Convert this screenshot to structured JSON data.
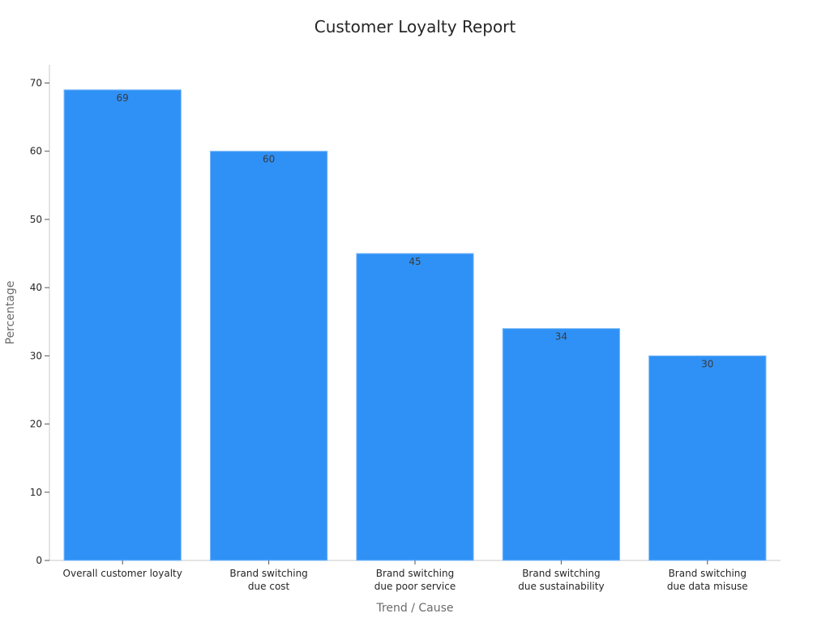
{
  "chart_data": {
    "type": "bar",
    "title": "Customer Loyalty Report",
    "xlabel": "Trend / Cause",
    "ylabel": "Percentage",
    "categories": [
      [
        "Overall customer loyalty"
      ],
      [
        "Brand switching",
        "due cost"
      ],
      [
        "Brand switching",
        "due poor service"
      ],
      [
        "Brand switching",
        "due sustainability"
      ],
      [
        "Brand switching",
        "due data misuse"
      ]
    ],
    "values": [
      69,
      60,
      45,
      34,
      30
    ],
    "ylim": [
      0,
      70
    ],
    "yticks": [
      0,
      10,
      20,
      30,
      40,
      50,
      60,
      70
    ],
    "grid": false,
    "legend": "none",
    "bar_color": "#2f91f6",
    "bar_edge_color": "#7fbaf8"
  }
}
